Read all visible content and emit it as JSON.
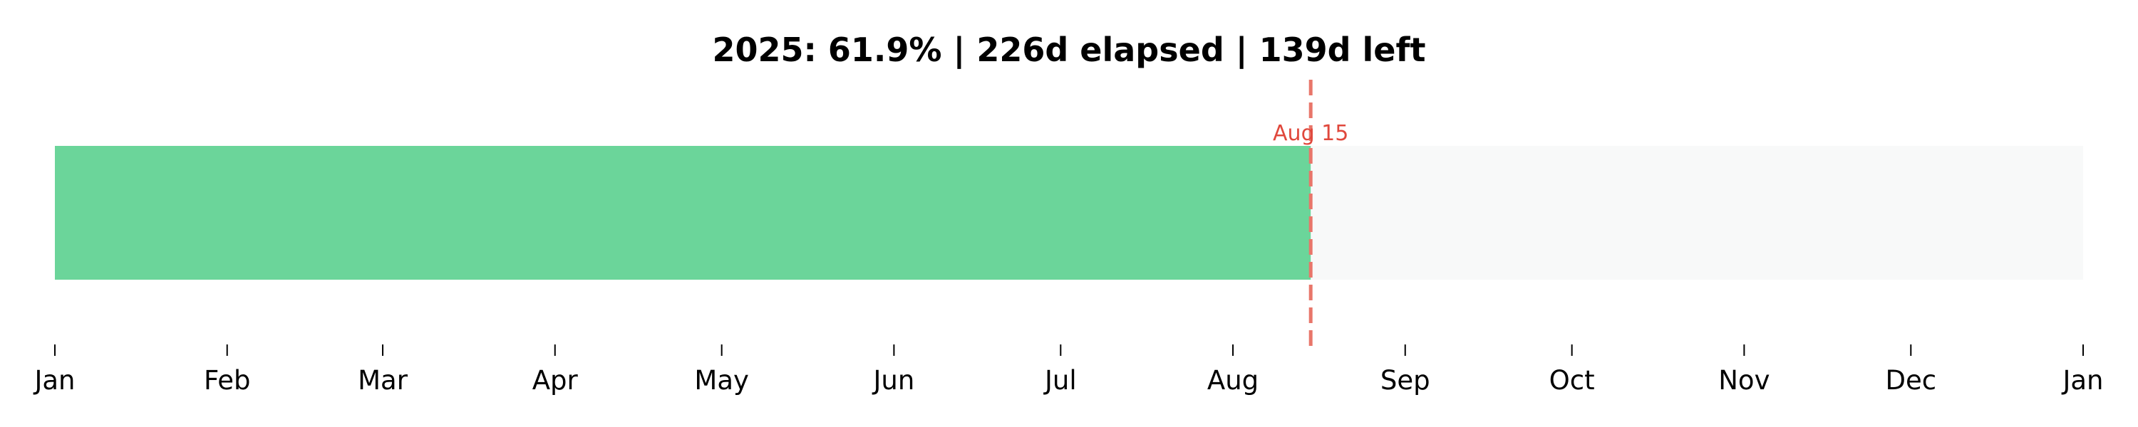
{
  "chart_data": {
    "type": "bar",
    "orientation": "horizontal",
    "title": "2025: 61.9% | 226d elapsed | 139d left",
    "xlabel": "",
    "ylabel": "",
    "x_range": [
      "2025-01-01",
      "2026-01-01"
    ],
    "elapsed_range": [
      "2025-01-01",
      "2025-08-15"
    ],
    "remaining_range": [
      "2025-08-15",
      "2026-01-01"
    ],
    "marker": {
      "date": "2025-08-15",
      "label": "Aug 15",
      "style": "dashed"
    },
    "ticks": [
      {
        "date": "2025-01-01",
        "label": "Jan"
      },
      {
        "date": "2025-02-01",
        "label": "Feb"
      },
      {
        "date": "2025-03-01",
        "label": "Mar"
      },
      {
        "date": "2025-04-01",
        "label": "Apr"
      },
      {
        "date": "2025-05-01",
        "label": "May"
      },
      {
        "date": "2025-06-01",
        "label": "Jun"
      },
      {
        "date": "2025-07-01",
        "label": "Jul"
      },
      {
        "date": "2025-08-01",
        "label": "Aug"
      },
      {
        "date": "2025-09-01",
        "label": "Sep"
      },
      {
        "date": "2025-10-01",
        "label": "Oct"
      },
      {
        "date": "2025-11-01",
        "label": "Nov"
      },
      {
        "date": "2025-12-01",
        "label": "Dec"
      },
      {
        "date": "2026-01-01",
        "label": "Jan"
      }
    ],
    "grid": false,
    "legend": "none",
    "colors": {
      "elapsed": "#6bd59a",
      "remaining": "#f8f9f9",
      "marker": "#e8766a",
      "marker_label": "#e0483c"
    }
  }
}
